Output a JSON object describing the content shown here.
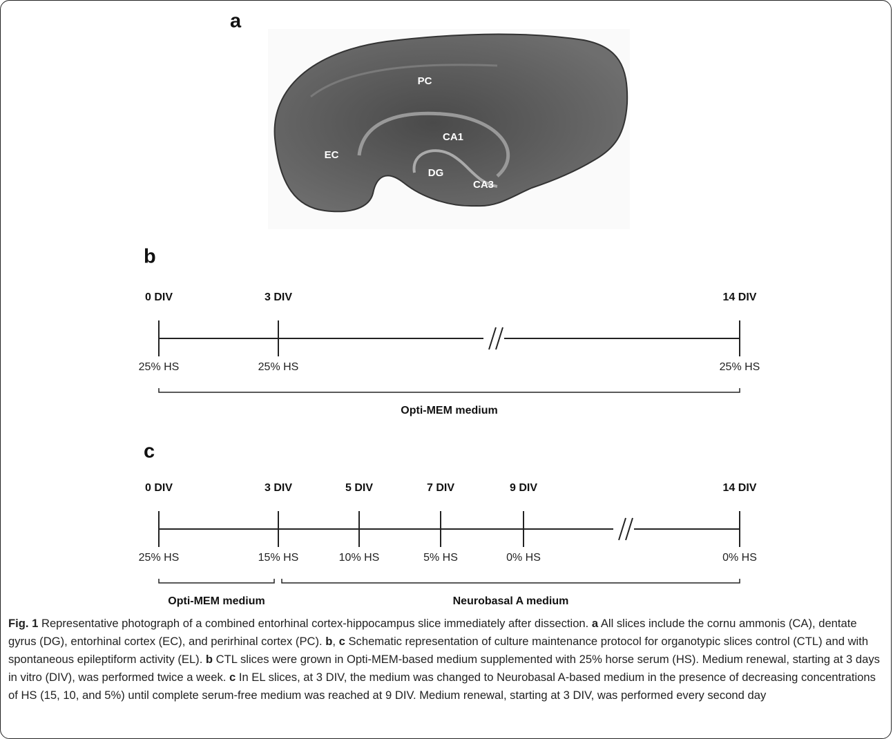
{
  "panel_a": {
    "label": "a",
    "regions": [
      "PC",
      "EC",
      "CA1",
      "DG",
      "CA3"
    ]
  },
  "panel_b": {
    "label": "b",
    "timepoints": [
      {
        "time": "0 DIV",
        "serum": "25% HS"
      },
      {
        "time": "3 DIV",
        "serum": "25% HS"
      },
      {
        "time": "14 DIV",
        "serum": "25% HS"
      }
    ],
    "media": [
      "Opti-MEM medium"
    ]
  },
  "panel_c": {
    "label": "c",
    "timepoints": [
      {
        "time": "0 DIV",
        "serum": "25% HS"
      },
      {
        "time": "3 DIV",
        "serum": "15% HS"
      },
      {
        "time": "5 DIV",
        "serum": "10% HS"
      },
      {
        "time": "7 DIV",
        "serum": "5% HS"
      },
      {
        "time": "9 DIV",
        "serum": "0% HS"
      },
      {
        "time": "14 DIV",
        "serum": "0% HS"
      }
    ],
    "media": [
      "Opti-MEM medium",
      "Neurobasal A medium"
    ]
  },
  "caption": [
    {
      "text": "Fig. 1",
      "bold": true
    },
    {
      "text": " Representative photograph of a combined entorhinal cortex-hippocampus slice immediately after dissection. ",
      "bold": false
    },
    {
      "text": "a",
      "bold": true
    },
    {
      "text": " All slices include the cornu ammonis (CA), dentate gyrus (DG), entorhinal cortex (EC), and perirhinal cortex (PC). ",
      "bold": false
    },
    {
      "text": "b",
      "bold": true
    },
    {
      "text": ", ",
      "bold": false
    },
    {
      "text": "c",
      "bold": true
    },
    {
      "text": " Schematic representation of culture maintenance protocol for organotypic slices control (CTL) and with spontaneous epileptiform activity (EL). ",
      "bold": false
    },
    {
      "text": "b",
      "bold": true
    },
    {
      "text": " CTL slices were grown in Opti-MEM-based medium supplemented with 25% horse serum (HS). Medium renewal, starting at 3 days in vitro (DIV), was performed twice a week. ",
      "bold": false
    },
    {
      "text": "c",
      "bold": true
    },
    {
      "text": " In EL slices, at 3 DIV, the medium was changed to Neurobasal A-based medium in the presence of decreasing concentrations of HS (15, 10, and 5%) until complete serum-free medium was reached at 9 DIV. Medium renewal, starting at 3 DIV, was performed every second day",
      "bold": false
    }
  ]
}
